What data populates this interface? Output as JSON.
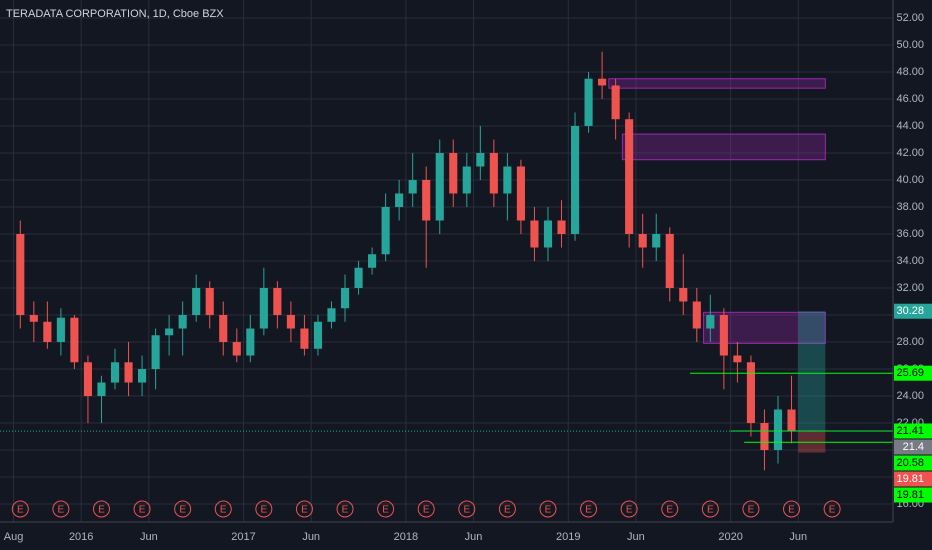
{
  "chart_data": {
    "type": "candlestick",
    "title": "TERADATA CORPORATION, 1D, Cboe BZX",
    "x": [
      "2015-08",
      "2015-09",
      "2015-10",
      "2015-11",
      "2015-12",
      "2016-01",
      "2016-02",
      "2016-03",
      "2016-04",
      "2016-05",
      "2016-06",
      "2016-07",
      "2016-08",
      "2016-09",
      "2016-10",
      "2016-11",
      "2016-12",
      "2017-01",
      "2017-02",
      "2017-03",
      "2017-04",
      "2017-05",
      "2017-06",
      "2017-07",
      "2017-08",
      "2017-09",
      "2017-10",
      "2017-11",
      "2017-12",
      "2018-01",
      "2018-02",
      "2018-03",
      "2018-04",
      "2018-05",
      "2018-06",
      "2018-07",
      "2018-08",
      "2018-09",
      "2018-10",
      "2018-11",
      "2018-12",
      "2019-01",
      "2019-02",
      "2019-03",
      "2019-04",
      "2019-05",
      "2019-06",
      "2019-07",
      "2019-08",
      "2019-09",
      "2019-10",
      "2019-11",
      "2019-12",
      "2020-01",
      "2020-02",
      "2020-03",
      "2020-04",
      "2020-05"
    ],
    "open": [
      36,
      30,
      29.5,
      28,
      29.8,
      26.5,
      24,
      25,
      26.5,
      25,
      26,
      28.5,
      29,
      30,
      32,
      30,
      28,
      27,
      29,
      32,
      30,
      29,
      27.5,
      29.5,
      30.5,
      32,
      33.5,
      34.5,
      38,
      39,
      40,
      37,
      42,
      39,
      41,
      42,
      39,
      41,
      37,
      35,
      37,
      36,
      44,
      47.5,
      47,
      44.5,
      36,
      35,
      36,
      32,
      31,
      29,
      30,
      27,
      26.5,
      22,
      20,
      23
    ],
    "high": [
      37,
      31,
      31,
      30.5,
      30,
      27,
      25.5,
      27.5,
      28,
      27,
      29,
      30,
      31,
      33,
      32.5,
      31,
      29,
      30,
      33.5,
      32.5,
      31,
      30,
      30,
      31,
      33,
      34,
      35,
      39,
      40,
      42,
      41,
      43,
      43,
      42,
      44,
      43,
      42,
      41.5,
      38,
      38,
      38.5,
      45,
      48,
      49.5,
      47.5,
      45,
      37.5,
      37.5,
      36.5,
      34.5,
      32,
      31.5,
      30.5,
      28,
      27,
      23,
      24,
      25.5
    ],
    "low": [
      29,
      28,
      27.5,
      27,
      26,
      22,
      22,
      24.5,
      24,
      24,
      24.5,
      27,
      27,
      29.5,
      29,
      27,
      26.5,
      26.5,
      28.5,
      29,
      28,
      27,
      27,
      29,
      29.5,
      31.5,
      33,
      34,
      37,
      38,
      33.5,
      36,
      38,
      38,
      40,
      38,
      37,
      36,
      34,
      34,
      35,
      35.5,
      43.5,
      46,
      43,
      35,
      33.5,
      34,
      31,
      30,
      28,
      28,
      24.5,
      25,
      21,
      18.5,
      19,
      20.5
    ],
    "close": [
      30,
      29.5,
      28,
      29.8,
      26.5,
      24,
      25,
      26.5,
      25,
      26,
      28.5,
      29,
      30,
      32,
      30,
      28,
      27,
      29,
      32,
      30,
      29,
      27.5,
      29.5,
      30.5,
      32,
      33.5,
      34.5,
      38,
      39,
      40,
      37,
      42,
      39,
      41,
      42,
      39,
      41,
      37,
      35,
      37,
      36,
      44,
      47.5,
      47,
      44.5,
      36,
      35,
      36,
      32,
      31,
      29,
      30,
      27,
      26.5,
      22,
      20,
      23,
      21.4
    ],
    "up_color": "#26a69a",
    "down_color": "#ef5350",
    "xlim": [
      "2015-07",
      "2021-01"
    ],
    "xticks": [
      {
        "value": "2015-08",
        "label": "Aug"
      },
      {
        "value": "2016-01",
        "label": "2016"
      },
      {
        "value": "2016-06",
        "label": "Jun"
      },
      {
        "value": "2017-01",
        "label": "2017"
      },
      {
        "value": "2017-06",
        "label": "Jun"
      },
      {
        "value": "2018-01",
        "label": "2018"
      },
      {
        "value": "2018-06",
        "label": "Jun"
      },
      {
        "value": "2019-01",
        "label": "2019"
      },
      {
        "value": "2019-06",
        "label": "Jun"
      },
      {
        "value": "2020-01",
        "label": "2020"
      },
      {
        "value": "2020-06",
        "label": "Jun"
      }
    ],
    "ylim": [
      14.67,
      53.33
    ],
    "yticks": [
      {
        "value": 16,
        "label": "16.00"
      },
      {
        "value": 18,
        "label": "18.00"
      },
      {
        "value": 20,
        "label": "20.00"
      },
      {
        "value": 22,
        "label": "22.00"
      },
      {
        "value": 24,
        "label": "24.00"
      },
      {
        "value": 26,
        "label": "26.00"
      },
      {
        "value": 28,
        "label": "28.00"
      },
      {
        "value": 30,
        "label": "30.00"
      },
      {
        "value": 32,
        "label": "32.00"
      },
      {
        "value": 34,
        "label": "34.00"
      },
      {
        "value": 36,
        "label": "36.00"
      },
      {
        "value": 38,
        "label": "38.00"
      },
      {
        "value": 40,
        "label": "40.00"
      },
      {
        "value": 42,
        "label": "42.00"
      },
      {
        "value": 44,
        "label": "44.00"
      },
      {
        "value": 46,
        "label": "46.00"
      },
      {
        "value": 48,
        "label": "48.00"
      },
      {
        "value": 50,
        "label": "50.00"
      },
      {
        "value": 52,
        "label": "52.00"
      }
    ],
    "grid": true,
    "zones": [
      {
        "from": "2019-04",
        "to": "2020-08",
        "low": 46.8,
        "high": 47.5
      },
      {
        "from": "2019-05",
        "to": "2020-08",
        "low": 41.5,
        "high": 43.4
      },
      {
        "from": "2019-11",
        "to": "2020-08",
        "low": 27.9,
        "high": 30.2
      }
    ],
    "levels": [
      {
        "value": 25.69,
        "from": "2019-10"
      },
      {
        "value": 21.41,
        "from": "2020-01"
      },
      {
        "value": 20.58,
        "from": "2020-02"
      }
    ],
    "level_color": "#00ff00",
    "position": {
      "from": "2020-06",
      "to": "2020-08",
      "target": 30.28,
      "entry": 21.41,
      "stop": 19.81
    },
    "last_price": 21.4,
    "price_labels": [
      {
        "value": 30.28,
        "color": "#26a69a"
      },
      {
        "value": 25.69,
        "color": "#00ff00"
      },
      {
        "value": 21.41,
        "color": "#00ff00"
      },
      {
        "value": 21.4,
        "color": "#787b86"
      },
      {
        "value": 20.58,
        "color": "#00ff00"
      },
      {
        "value": 19.81,
        "color": "#ef5350"
      },
      {
        "value": 19.81,
        "color": "#00ff00"
      }
    ],
    "earnings": [
      {
        "date": "2015-08",
        "label": "E"
      },
      {
        "date": "2015-11",
        "label": "E"
      },
      {
        "date": "2016-02",
        "label": "E"
      },
      {
        "date": "2016-05",
        "label": "E"
      },
      {
        "date": "2016-08",
        "label": "E"
      },
      {
        "date": "2016-11",
        "label": "E"
      },
      {
        "date": "2017-02",
        "label": "E"
      },
      {
        "date": "2017-05",
        "label": "E"
      },
      {
        "date": "2017-08",
        "label": "E"
      },
      {
        "date": "2017-11",
        "label": "E"
      },
      {
        "date": "2018-02",
        "label": "E"
      },
      {
        "date": "2018-05",
        "label": "E"
      },
      {
        "date": "2018-08",
        "label": "E"
      },
      {
        "date": "2018-11",
        "label": "E"
      },
      {
        "date": "2019-02",
        "label": "E"
      },
      {
        "date": "2019-05",
        "label": "E"
      },
      {
        "date": "2019-08",
        "label": "E"
      },
      {
        "date": "2019-11",
        "label": "E"
      },
      {
        "date": "2020-02",
        "label": "E"
      },
      {
        "date": "2020-05",
        "label": "E"
      },
      {
        "date": "2020-08",
        "label": "E"
      }
    ]
  }
}
